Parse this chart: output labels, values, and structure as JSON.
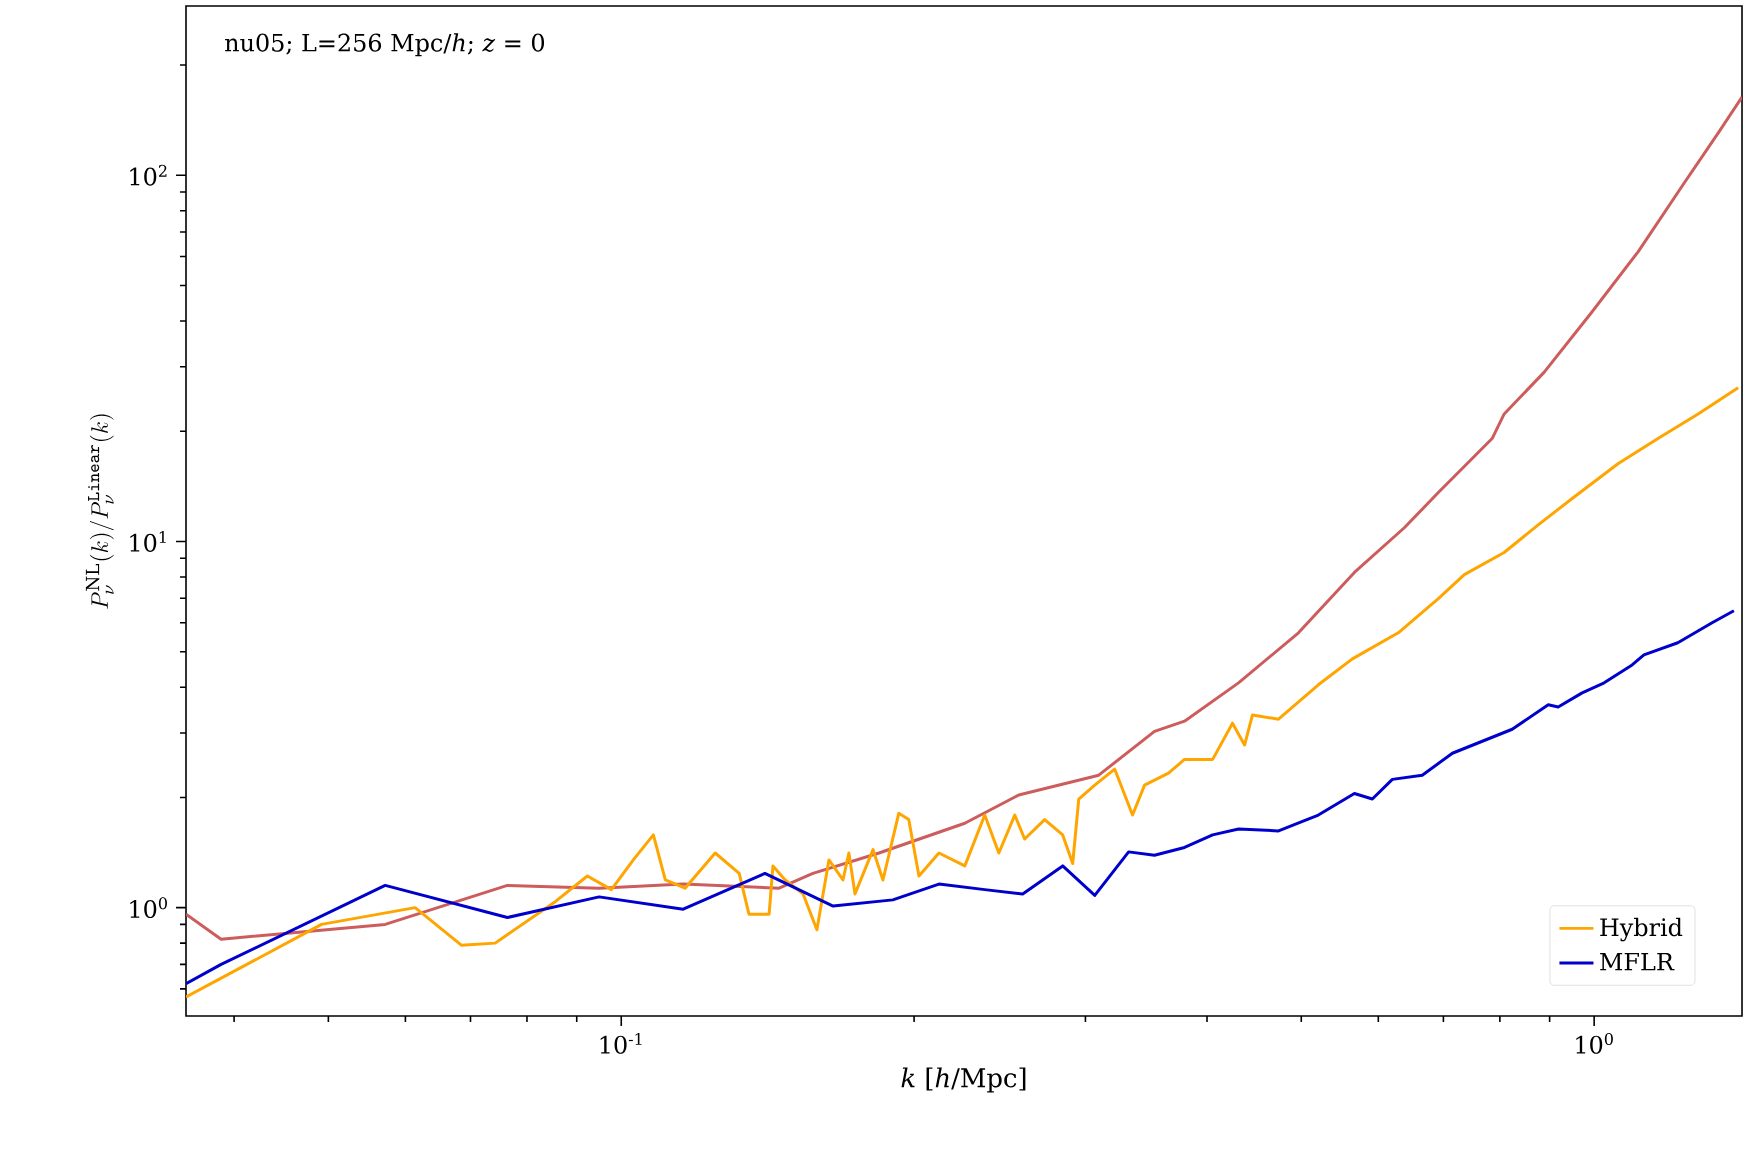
{
  "chart_data": {
    "type": "line",
    "log": "xy",
    "xlabel": "*k* [*h*/Mpc]",
    "ylabel": "P_\\nu^{\\mathrm{NL}}(k)/P_\\nu^{\\mathtt{Linear}}(k)",
    "annotations": [
      "nu05; L=256 Mpc/*h*; *z* = 0"
    ],
    "xlim": [
      0.0357,
      1.419
    ],
    "ylim": [
      0.506,
      290
    ],
    "xticks": [
      {
        "value": 0.1,
        "label": "10$^{-1}$"
      },
      {
        "value": 1,
        "label": "10$^{0}$"
      }
    ],
    "yticks": [
      {
        "value": 1,
        "label": "10$^{0}$"
      },
      {
        "value": 10,
        "label": "10$^{1}$"
      },
      {
        "value": 100,
        "label": "10$^{2}$"
      }
    ],
    "legend": "bottom right",
    "series": [
      {
        "color": "#cd5c5c",
        "x": [
          0.0357,
          0.0388,
          0.0572,
          0.0764,
          0.0949,
          0.1158,
          0.1453,
          0.1574,
          0.1841,
          0.2255,
          0.2562,
          0.3096,
          0.3533,
          0.3793,
          0.431,
          0.4967,
          0.567,
          0.6381,
          0.6916,
          0.7856,
          0.8082,
          0.8886,
          0.9952,
          1.11,
          1.237,
          1.341,
          1.419
        ],
        "values": [
          0.96,
          0.82,
          0.9,
          1.15,
          1.13,
          1.16,
          1.13,
          1.24,
          1.41,
          1.7,
          2.03,
          2.3,
          3.03,
          3.23,
          4.11,
          5.63,
          8.23,
          10.9,
          13.6,
          19.1,
          22.3,
          29.0,
          42.4,
          61.9,
          95.1,
          130.3,
          163.6
        ]
      },
      {
        "name": "Hybrid",
        "color": "#ffa500",
        "x": [
          0.0357,
          0.0492,
          0.0614,
          0.0685,
          0.0742,
          0.0856,
          0.0923,
          0.0977,
          0.1029,
          0.1079,
          0.111,
          0.1163,
          0.1249,
          0.1322,
          0.1353,
          0.1419,
          0.1432,
          0.1474,
          0.1538,
          0.1589,
          0.1635,
          0.169,
          0.1714,
          0.1739,
          0.1815,
          0.1858,
          0.1929,
          0.1975,
          0.2023,
          0.2121,
          0.2255,
          0.2364,
          0.2444,
          0.2538,
          0.2598,
          0.2724,
          0.2843,
          0.2911,
          0.2953,
          0.3067,
          0.3215,
          0.3354,
          0.3451,
          0.3652,
          0.3793,
          0.4054,
          0.4249,
          0.4372,
          0.4455,
          0.4738,
          0.5206,
          0.5643,
          0.6291,
          0.6916,
          0.7355,
          0.8082,
          0.876,
          0.9493,
          1.058,
          1.163,
          1.279,
          1.406
        ],
        "values": [
          0.57,
          0.9,
          1.0,
          0.79,
          0.8,
          1.04,
          1.22,
          1.12,
          1.35,
          1.58,
          1.19,
          1.13,
          1.41,
          1.24,
          0.96,
          0.96,
          1.3,
          1.19,
          1.09,
          0.87,
          1.35,
          1.19,
          1.41,
          1.09,
          1.44,
          1.19,
          1.81,
          1.74,
          1.22,
          1.41,
          1.3,
          1.79,
          1.41,
          1.79,
          1.54,
          1.74,
          1.58,
          1.32,
          1.98,
          2.16,
          2.39,
          1.79,
          2.16,
          2.33,
          2.54,
          2.54,
          3.19,
          2.78,
          3.36,
          3.27,
          4.06,
          4.78,
          5.63,
          6.98,
          8.12,
          9.33,
          11.1,
          13.1,
          16.3,
          19.1,
          22.3,
          26.3
        ]
      },
      {
        "name": "MFLR",
        "color": "#0000cd",
        "x": [
          0.0357,
          0.0388,
          0.0572,
          0.0764,
          0.0949,
          0.1158,
          0.1405,
          0.1651,
          0.1902,
          0.2121,
          0.2364,
          0.2586,
          0.2843,
          0.3067,
          0.3323,
          0.3533,
          0.3793,
          0.4054,
          0.431,
          0.4738,
          0.5206,
          0.567,
          0.5916,
          0.6203,
          0.6658,
          0.715,
          0.8237,
          0.8971,
          0.9184,
          0.972,
          1.024,
          1.094,
          1.125,
          1.219,
          1.322,
          1.392
        ],
        "values": [
          0.62,
          0.7,
          1.15,
          0.94,
          1.07,
          0.99,
          1.24,
          1.01,
          1.05,
          1.16,
          1.12,
          1.09,
          1.3,
          1.08,
          1.42,
          1.39,
          1.46,
          1.58,
          1.64,
          1.62,
          1.79,
          2.05,
          1.98,
          2.24,
          2.3,
          2.64,
          3.07,
          3.58,
          3.53,
          3.86,
          4.11,
          4.6,
          4.9,
          5.29,
          6.0,
          6.47
        ]
      }
    ]
  }
}
